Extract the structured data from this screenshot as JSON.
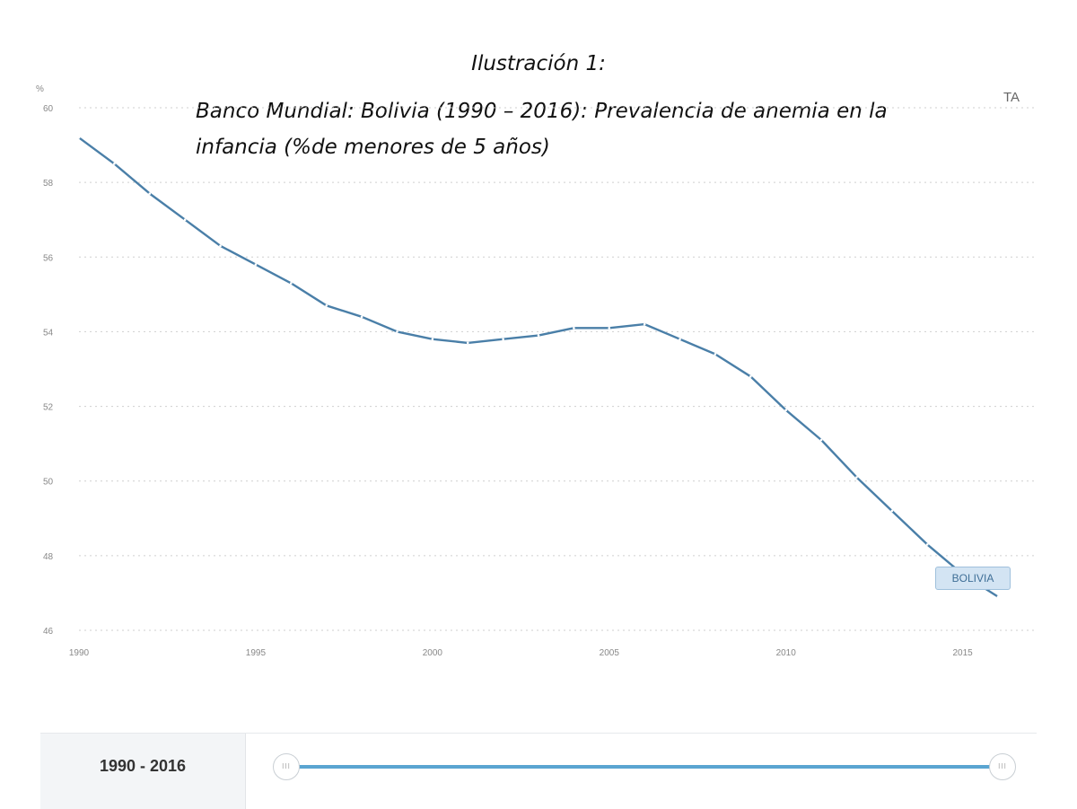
{
  "caption": {
    "line1": "Ilustración 1:",
    "line2": "Banco Mundial: Bolivia (1990 – 2016): Prevalencia de anemia en la infancia (%de menores de 5 años)"
  },
  "corner_text": "TA",
  "chart_data": {
    "type": "line",
    "ylabel": "%",
    "ylim": [
      46,
      60
    ],
    "yticks": [
      46,
      48,
      50,
      52,
      54,
      56,
      58,
      60
    ],
    "xlim": [
      1990,
      2016
    ],
    "xticks": [
      1990,
      1995,
      2000,
      2005,
      2010,
      2015
    ],
    "grid": true,
    "series": [
      {
        "name": "BOLIVIA",
        "color": "#4a7fa8",
        "x": [
          1990,
          1991,
          1992,
          1993,
          1994,
          1995,
          1996,
          1997,
          1998,
          1999,
          2000,
          2001,
          2002,
          2003,
          2004,
          2005,
          2006,
          2007,
          2008,
          2009,
          2010,
          2011,
          2012,
          2013,
          2014,
          2015,
          2016
        ],
        "values": [
          59.2,
          58.5,
          57.7,
          57.0,
          56.3,
          55.8,
          55.3,
          54.7,
          54.4,
          54.0,
          53.8,
          53.7,
          53.8,
          53.9,
          54.1,
          54.1,
          54.2,
          53.8,
          53.4,
          52.8,
          51.9,
          51.1,
          50.1,
          49.2,
          48.3,
          47.5,
          46.9
        ]
      }
    ]
  },
  "range_selector": {
    "label": "1990 - 2016",
    "handle_glyph": "III"
  }
}
